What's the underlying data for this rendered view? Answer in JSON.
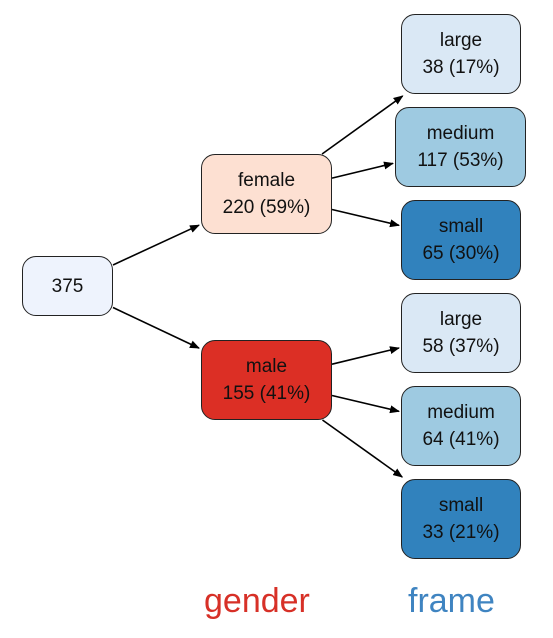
{
  "root": {
    "label": "375",
    "color": "#eef3fd"
  },
  "levels": [
    {
      "label": "gender",
      "color": "#d73027"
    },
    {
      "label": "frame",
      "color": "#3f84c1"
    }
  ],
  "nodes": {
    "female": {
      "name": "female",
      "count": "220 (59%)",
      "color": "#fde0d2"
    },
    "male": {
      "name": "male",
      "count": "155 (41%)",
      "color": "#dc2f25"
    },
    "female_large": {
      "name": "large",
      "count": "38 (17%)",
      "color": "#dae8f5"
    },
    "female_medium": {
      "name": "medium",
      "count": "117 (53%)",
      "color": "#9ecae1"
    },
    "female_small": {
      "name": "small",
      "count": "65 (30%)",
      "color": "#3182bd"
    },
    "male_large": {
      "name": "large",
      "count": "58 (37%)",
      "color": "#dae8f5"
    },
    "male_medium": {
      "name": "medium",
      "count": "64 (41%)",
      "color": "#9ecae1"
    },
    "male_small": {
      "name": "small",
      "count": "33 (21%)",
      "color": "#3182bd"
    }
  },
  "edges": [
    [
      "root",
      "female"
    ],
    [
      "root",
      "male"
    ],
    [
      "female",
      "female_large"
    ],
    [
      "female",
      "female_medium"
    ],
    [
      "female",
      "female_small"
    ],
    [
      "male",
      "male_large"
    ],
    [
      "male",
      "male_medium"
    ],
    [
      "male",
      "male_small"
    ]
  ]
}
